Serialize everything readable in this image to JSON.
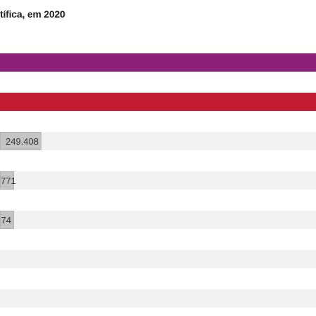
{
  "chart_data": {
    "type": "bar",
    "orientation": "horizontal",
    "title": "tífica, em 2020",
    "legend": false,
    "rows": [
      {
        "color": "#8b2278",
        "fill_fraction": 1.0,
        "label": ""
      },
      {
        "color": "#c21d33",
        "fill_fraction": 1.0,
        "label": ""
      },
      {
        "color": "#c4c4c4",
        "fill_fraction": 0.13,
        "label": "249.408"
      },
      {
        "color": "#c4c4c4",
        "fill_fraction": 0.045,
        "label": "771"
      },
      {
        "color": "#c4c4c4",
        "fill_fraction": 0.045,
        "label": "74"
      },
      {
        "color": "#f2f2f2",
        "fill_fraction": 0,
        "label": ""
      },
      {
        "color": "#f2f2f2",
        "fill_fraction": 0,
        "label": ""
      }
    ]
  }
}
